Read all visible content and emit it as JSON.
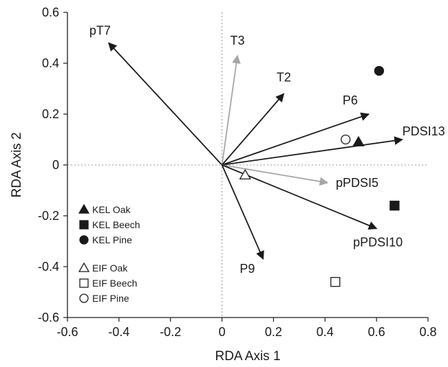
{
  "chart_data": {
    "type": "scatter",
    "title": "",
    "xlabel": "RDA Axis 1",
    "ylabel": "RDA Axis 2",
    "xlim": [
      -0.6,
      0.8
    ],
    "ylim": [
      -0.6,
      0.6
    ],
    "xticks": [
      -0.6,
      -0.4,
      -0.2,
      0,
      0.2,
      0.4,
      0.6,
      0.8
    ],
    "yticks": [
      -0.6,
      -0.4,
      -0.2,
      0,
      0.2,
      0.4,
      0.6
    ],
    "xtick_labels": [
      "-0.6",
      "-0.4",
      "-0.2",
      "0",
      "0.2",
      "0.4",
      "0.6",
      "0.8"
    ],
    "ytick_labels": [
      "-0.6",
      "-0.4",
      "-0.2",
      "0",
      "0.2",
      "0.4",
      "0.6"
    ],
    "grid": false,
    "origin_reference_lines": "dotted",
    "vectors": [
      {
        "label": "pT7",
        "x": -0.44,
        "y": 0.48,
        "color": "#1a1a1a"
      },
      {
        "label": "T3",
        "x": 0.06,
        "y": 0.43,
        "color": "#a6a6a6"
      },
      {
        "label": "T2",
        "x": 0.24,
        "y": 0.28,
        "color": "#1a1a1a"
      },
      {
        "label": "P6",
        "x": 0.57,
        "y": 0.2,
        "color": "#1a1a1a"
      },
      {
        "label": "PDSI13",
        "x": 0.7,
        "y": 0.1,
        "color": "#1a1a1a"
      },
      {
        "label": "pPDSI5",
        "x": 0.41,
        "y": -0.07,
        "color": "#a6a6a6"
      },
      {
        "label": "pPDSI10",
        "x": 0.6,
        "y": -0.25,
        "color": "#1a1a1a"
      },
      {
        "label": "P9",
        "x": 0.16,
        "y": -0.37,
        "color": "#1a1a1a"
      }
    ],
    "series": [
      {
        "name": "KEL Oak",
        "marker": "triangle",
        "filled": true,
        "points": [
          [
            0.53,
            0.09
          ]
        ]
      },
      {
        "name": "KEL Beech",
        "marker": "square",
        "filled": true,
        "points": [
          [
            0.67,
            -0.16
          ]
        ]
      },
      {
        "name": "KEL Pine",
        "marker": "circle",
        "filled": true,
        "points": [
          [
            0.61,
            0.37
          ]
        ]
      },
      {
        "name": "EIF Oak",
        "marker": "triangle",
        "filled": false,
        "points": [
          [
            0.09,
            -0.04
          ]
        ]
      },
      {
        "name": "EIF Beech",
        "marker": "square",
        "filled": false,
        "points": [
          [
            0.44,
            -0.46
          ]
        ]
      },
      {
        "name": "EIF Pine",
        "marker": "circle",
        "filled": false,
        "points": [
          [
            0.48,
            0.1
          ]
        ]
      }
    ],
    "legend_position": "bottom-left"
  }
}
